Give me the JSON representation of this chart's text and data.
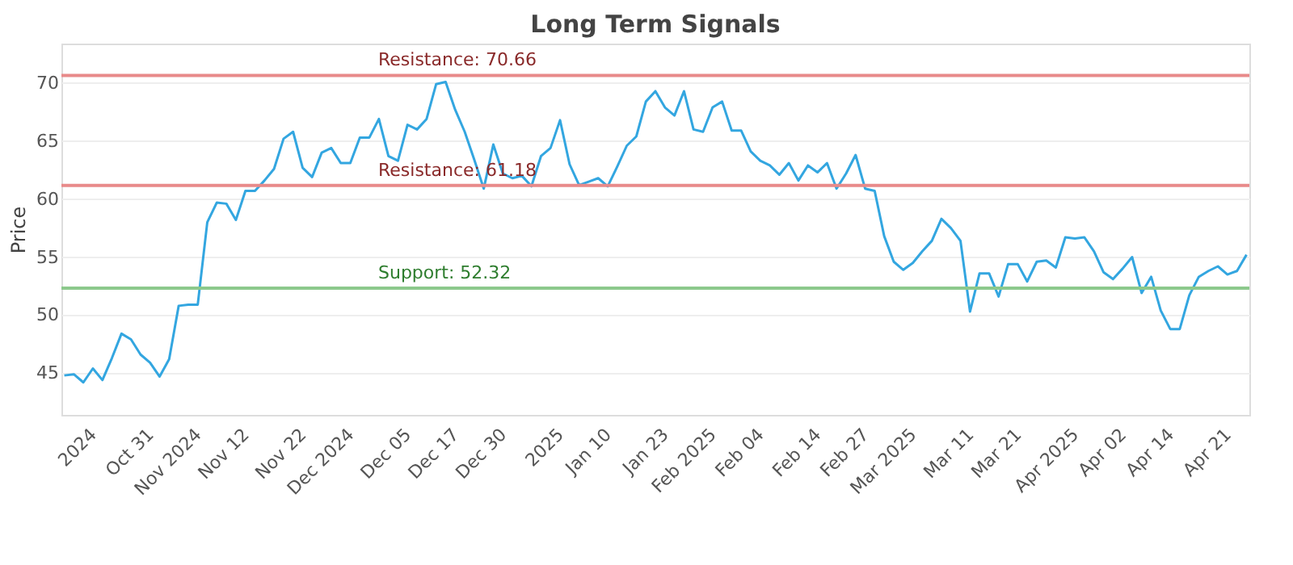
{
  "chart_data": {
    "type": "line",
    "title": "Long Term Signals",
    "ylabel": "Price",
    "categories": [
      null,
      null,
      null,
      "2024",
      null,
      null,
      null,
      null,
      null,
      "Oct 31",
      null,
      null,
      null,
      null,
      "Nov 2024",
      null,
      null,
      null,
      null,
      "Nov 12",
      null,
      null,
      null,
      null,
      null,
      "Nov 22",
      null,
      null,
      null,
      null,
      "Dec 2024",
      null,
      null,
      null,
      null,
      null,
      "Dec 05",
      null,
      null,
      null,
      null,
      "Dec 17",
      null,
      null,
      null,
      null,
      "Dec 30",
      null,
      null,
      null,
      null,
      null,
      "2025",
      null,
      null,
      null,
      null,
      "Jan 10",
      null,
      null,
      null,
      null,
      null,
      "Jan 23",
      null,
      null,
      null,
      null,
      "Feb 2025",
      null,
      null,
      null,
      null,
      "Feb 04",
      null,
      null,
      null,
      null,
      null,
      "Feb 14",
      null,
      null,
      null,
      null,
      "Feb 27",
      null,
      null,
      null,
      null,
      "Mar 2025",
      null,
      null,
      null,
      null,
      null,
      "Mar 11",
      null,
      null,
      null,
      null,
      "Mar 21",
      null,
      null,
      null,
      null,
      null,
      "Apr 2025",
      null,
      null,
      null,
      null,
      "Apr 02",
      null,
      null,
      null,
      null,
      "Apr 14",
      null,
      null,
      null,
      null,
      null,
      "Apr 21",
      null,
      null
    ],
    "series": [
      {
        "color": "#33a6e0",
        "values": [
          44.8,
          44.9,
          44.2,
          45.4,
          44.4,
          46.3,
          48.4,
          47.9,
          46.6,
          45.9,
          44.7,
          46.2,
          50.8,
          50.9,
          50.9,
          58.0,
          59.7,
          59.6,
          58.2,
          60.7,
          60.7,
          61.6,
          62.6,
          65.2,
          65.8,
          62.7,
          61.9,
          64.0,
          64.4,
          63.1,
          63.1,
          65.3,
          65.3,
          66.9,
          63.7,
          63.3,
          66.4,
          66.0,
          66.9,
          69.9,
          70.1,
          67.7,
          65.8,
          63.4,
          60.9,
          64.7,
          62.2,
          61.8,
          62.0,
          61.1,
          63.7,
          64.4,
          66.8,
          63.0,
          61.2,
          61.5,
          61.8,
          61.1,
          62.8,
          64.6,
          65.4,
          68.4,
          69.3,
          67.9,
          67.2,
          69.3,
          66.0,
          65.8,
          67.9,
          68.4,
          65.9,
          65.9,
          64.1,
          63.3,
          62.9,
          62.1,
          63.1,
          61.6,
          62.9,
          62.3,
          63.1,
          60.9,
          62.2,
          63.8,
          60.9,
          60.7,
          56.8,
          54.6,
          53.9,
          54.5,
          55.5,
          56.4,
          58.3,
          57.5,
          56.4,
          50.3,
          53.6,
          53.6,
          51.6,
          54.4,
          54.4,
          52.9,
          54.6,
          54.7,
          54.1,
          56.7,
          56.6,
          56.7,
          55.5,
          53.7,
          53.1,
          54.0,
          55.0,
          51.9,
          53.3,
          50.4,
          48.8,
          48.8,
          51.7,
          53.3,
          53.8,
          54.2,
          53.5,
          53.8,
          55.2
        ]
      }
    ],
    "ylim": [
      41.4,
      73.4
    ],
    "yticks": [
      45,
      50,
      55,
      60,
      65,
      70
    ],
    "grid": "y",
    "marker": "none",
    "line_style": "solid",
    "ref_lines": [
      {
        "axis": "y",
        "value": 70.66,
        "label": "Resistance: 70.66",
        "color": "#e88a8a"
      },
      {
        "axis": "y",
        "value": 61.18,
        "label": "Resistance: 61.18",
        "color": "#e88a8a"
      },
      {
        "axis": "y",
        "value": 52.32,
        "label": "Support: 52.32",
        "color": "#8cc98c"
      }
    ]
  }
}
